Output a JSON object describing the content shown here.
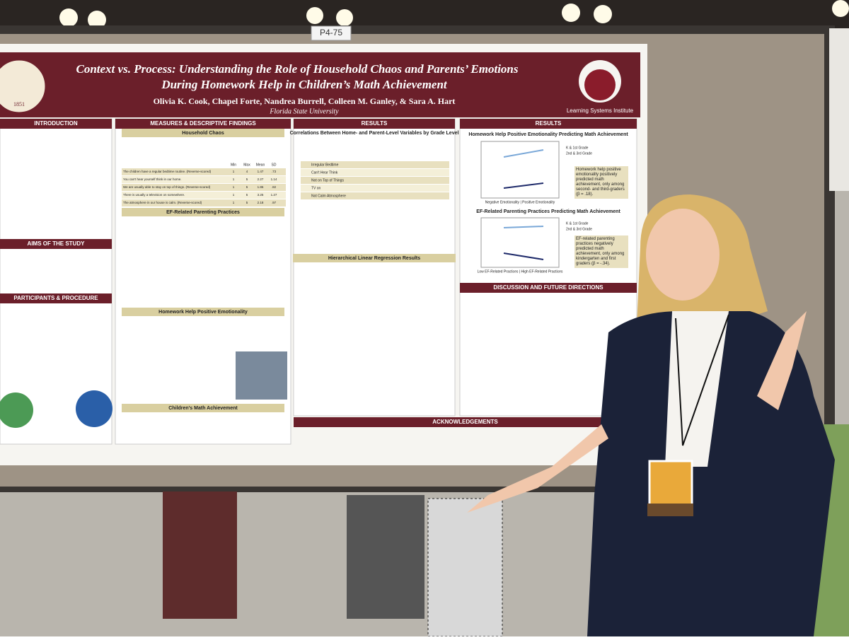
{
  "board_label": "P4-75",
  "poster": {
    "title_lines": [
      "Context vs. Process: Understanding the Role of Household Chaos and Parents’ Emotions",
      "During Homework Help in Children’s Math Achievement"
    ],
    "authors": "Olivia K. Cook, Chapel Forte, Nandrea Burrell, Colleen M. Ganley, & Sara A. Hart",
    "affiliation": "Florida State University",
    "institute": "Learning Systems Institute",
    "seal_year": "1851",
    "sections": {
      "introduction": "INTRODUCTION",
      "measures": "MEASURES & DESCRIPTIVE FINDINGS",
      "results_1": "RESULTS",
      "results_2": "RESULTS",
      "aims": "AIMS OF THE STUDY",
      "participants": "PARTICIPANTS & PROCEDURE",
      "discussion": "DISCUSSION AND FUTURE DIRECTIONS",
      "acknowledgements": "ACKNOWLEDGEMENTS"
    },
    "subheadings": {
      "household_chaos": "Household Chaos",
      "ef_practices": "EF-Related Parenting Practices",
      "emotionality": "Homework Help Positive Emotionality",
      "math": "Children's Math Achievement",
      "correlations": "Correlations Between Home- and Parent-Level Variables by Grade Level",
      "regression": "Hierarchical Linear Regression Results",
      "chart_1": "Homework Help Positive Emotionality Predicting Math Achievement",
      "chart_2": "EF-Related Parenting Practices Predicting Math Achievement"
    },
    "household_chaos_table": {
      "columns": [
        "Min",
        "Max",
        "Mean",
        "SD"
      ],
      "rows": [
        [
          "The children have a regular bedtime routine. (Reverse-scored)",
          "1",
          "4",
          "1.47",
          ".73"
        ],
        [
          "You can't hear yourself think in our home.",
          "1",
          "5",
          "2.27",
          "1.14"
        ],
        [
          "We are usually able to stay on top of things. (Reverse-scored)",
          "1",
          "5",
          "1.86",
          ".82"
        ],
        [
          "There is usually a television on somewhere.",
          "1",
          "5",
          "3.25",
          "1.27"
        ],
        [
          "The atmosphere in our house is calm. (Reverse-scored)",
          "1",
          "5",
          "2.18",
          ".97"
        ]
      ]
    },
    "correlation_indicators": [
      "Irregular Bedtime",
      "Can't Hear Think",
      "Not on Top of Things",
      "TV on",
      "Not Calm Atmosphere"
    ],
    "chart_legend": [
      "K & 1st Grade",
      "2nd & 3rd Grade"
    ],
    "chart_x_labels": [
      "Negative Emotionality | Positive Emotionality",
      "Low EF-Related Practices | High EF-Related Practices"
    ],
    "chart_notes": [
      "Homework help positive emotionality positively predicted math achievement, only among second- and third-graders (β = .18).",
      "EF-related parenting practices negatively predicted math achievement, only among kindergarten and first graders (β = -.34)."
    ]
  }
}
